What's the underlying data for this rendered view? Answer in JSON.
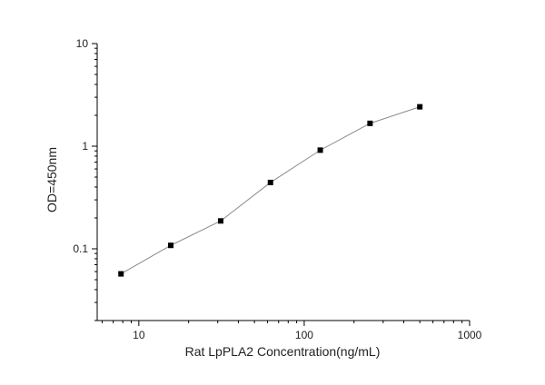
{
  "chart_data": {
    "type": "line",
    "title": "",
    "xlabel": "Rat LpPLA2 Concentration(ng/mL)",
    "ylabel": "OD=450nm",
    "xscale": "log",
    "yscale": "log",
    "xlim": [
      5.6,
      1000
    ],
    "ylim": [
      0.02,
      10
    ],
    "x_major_ticks": [
      {
        "value": 10,
        "label": "10"
      },
      {
        "value": 100,
        "label": "100"
      },
      {
        "value": 1000,
        "label": "1000"
      }
    ],
    "y_major_ticks": [
      {
        "value": 0.1,
        "label": "0.1"
      },
      {
        "value": 1,
        "label": "1"
      },
      {
        "value": 10,
        "label": "10"
      }
    ],
    "grid": false,
    "legend": "none",
    "marker": "square",
    "colors": {
      "line": "#8a8a8a",
      "marker": "#000000",
      "axis": "#000000"
    },
    "series": [
      {
        "x": [
          7.8,
          15.6,
          31.25,
          62.5,
          125,
          250,
          500
        ],
        "y": [
          0.057,
          0.108,
          0.187,
          0.443,
          0.915,
          1.67,
          2.42
        ]
      }
    ]
  }
}
